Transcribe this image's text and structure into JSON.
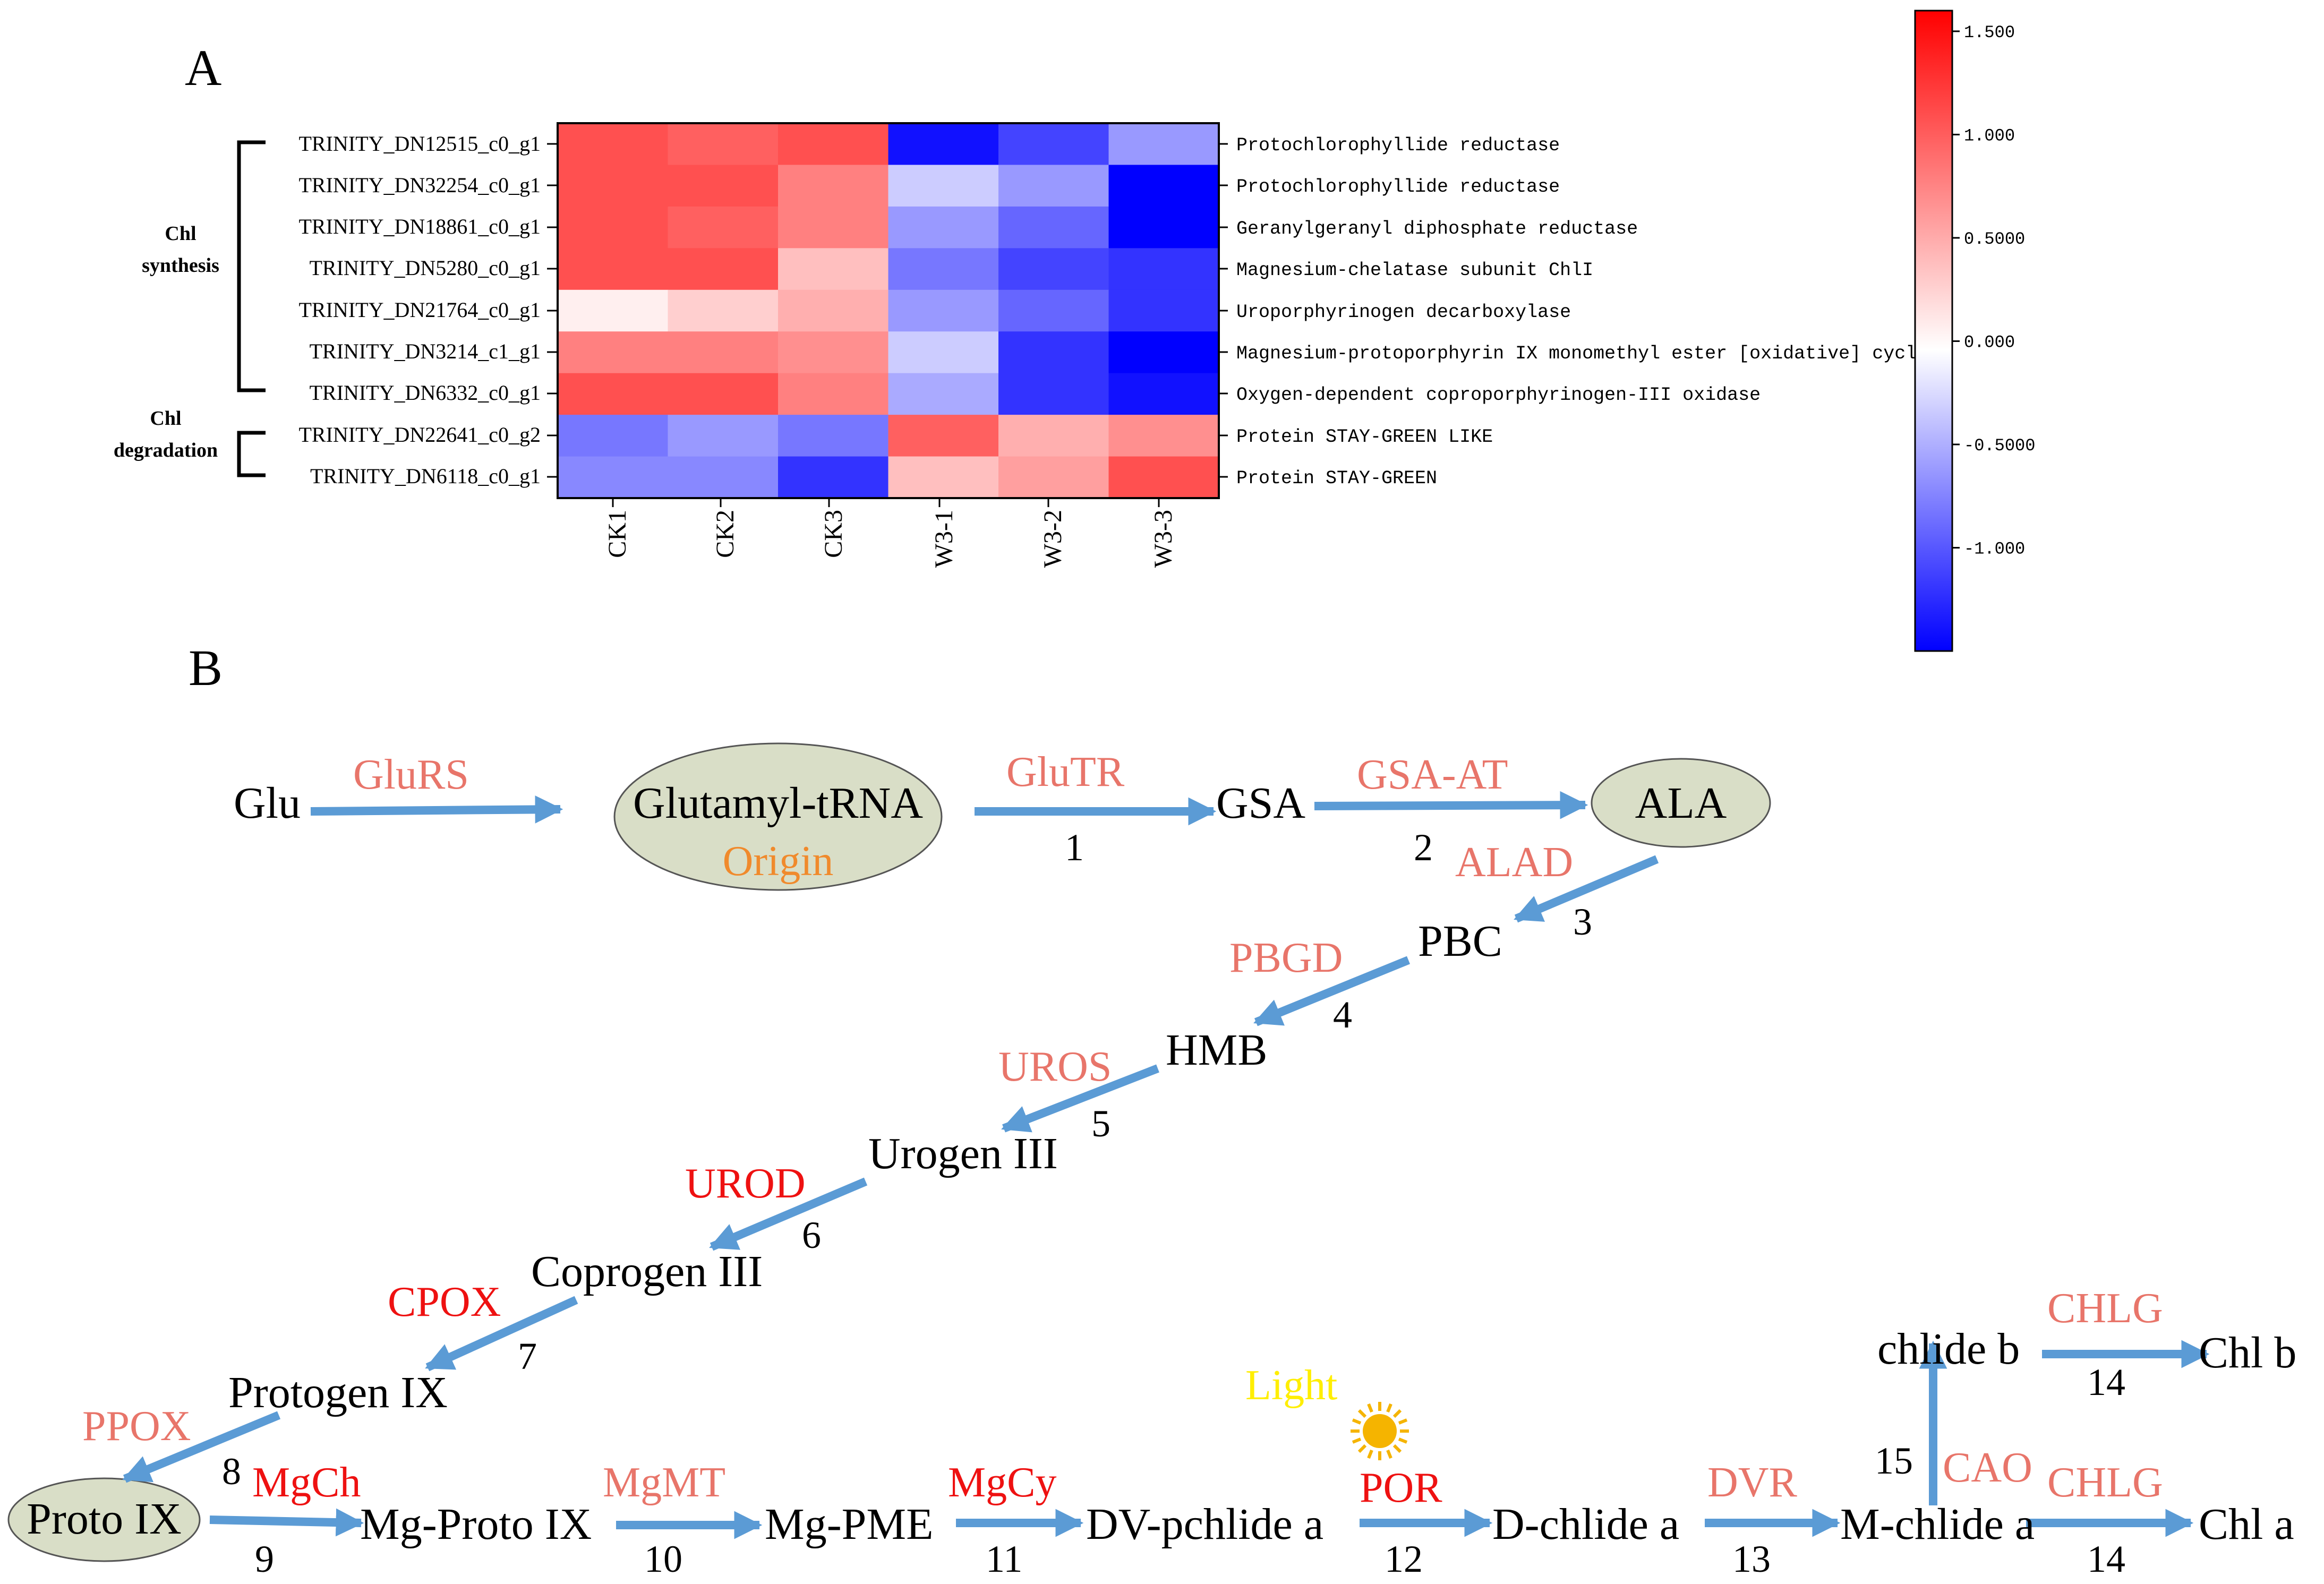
{
  "panel_a": {
    "label": "A",
    "groups": [
      {
        "line1": "Chl",
        "line2": "synthesis"
      },
      {
        "line1": "Chl",
        "line2": "degradation"
      }
    ],
    "genes": [
      "TRINITY_DN12515_c0_g1",
      "TRINITY_DN32254_c0_g1",
      "TRINITY_DN18861_c0_g1",
      "TRINITY_DN5280_c0_g1",
      "TRINITY_DN21764_c0_g1",
      "TRINITY_DN3214_c1_g1",
      "TRINITY_DN6332_c0_g1",
      "TRINITY_DN22641_c0_g2",
      "TRINITY_DN6118_c0_g1"
    ],
    "annotations": [
      "Protochlorophyllide reductase",
      "Protochlorophyllide reductase",
      "Geranylgeranyl diphosphate reductase",
      "Magnesium-chelatase subunit ChlI",
      "Uroporphyrinogen decarboxylase",
      "Magnesium-protoporphyrin IX monomethyl ester [oxidative] cyclase",
      "Oxygen-dependent coproporphyrinogen-III oxidase",
      "Protein STAY-GREEN LIKE",
      "Protein STAY-GREEN"
    ],
    "samples": [
      "CK1",
      "CK2",
      "CK3",
      "W3-1",
      "W3-2",
      "W3-3"
    ],
    "colorbar": {
      "min": -1.5,
      "max": 1.6,
      "ticks": [
        {
          "label": "1.500",
          "value": 1.5
        },
        {
          "label": "1.000",
          "value": 1.0
        },
        {
          "label": "0.5000",
          "value": 0.5
        },
        {
          "label": "0.000",
          "value": 0.0
        },
        {
          "label": "-0.5000",
          "value": -0.5
        },
        {
          "label": "-1.000",
          "value": -1.0
        }
      ],
      "colors": {
        "low": "#0000ff",
        "mid": "#ffffff",
        "high": "#ff0000"
      }
    }
  },
  "chart_data": {
    "type": "heatmap",
    "title": "",
    "rows": [
      "TRINITY_DN12515_c0_g1",
      "TRINITY_DN32254_c0_g1",
      "TRINITY_DN18861_c0_g1",
      "TRINITY_DN5280_c0_g1",
      "TRINITY_DN21764_c0_g1",
      "TRINITY_DN3214_c1_g1",
      "TRINITY_DN6332_c0_g1",
      "TRINITY_DN22641_c0_g2",
      "TRINITY_DN6118_c0_g1"
    ],
    "columns": [
      "CK1",
      "CK2",
      "CK3",
      "W3-1",
      "W3-2",
      "W3-3"
    ],
    "values": [
      [
        1.1,
        1.0,
        1.1,
        -1.4,
        -1.1,
        -0.6
      ],
      [
        1.1,
        1.1,
        0.8,
        -0.3,
        -0.6,
        -1.6
      ],
      [
        1.1,
        1.0,
        0.8,
        -0.6,
        -0.9,
        -1.6
      ],
      [
        1.1,
        1.1,
        0.4,
        -0.8,
        -1.1,
        -1.2
      ],
      [
        0.1,
        0.3,
        0.5,
        -0.6,
        -0.9,
        -1.2
      ],
      [
        0.8,
        0.8,
        0.7,
        -0.3,
        -1.2,
        -1.6
      ],
      [
        1.1,
        1.1,
        0.8,
        -0.5,
        -1.2,
        -1.4
      ],
      [
        -0.8,
        -0.6,
        -0.8,
        1.0,
        0.5,
        0.7
      ],
      [
        -0.7,
        -0.7,
        -1.2,
        0.4,
        0.6,
        1.1
      ]
    ],
    "colorbar_range": [
      -1.5,
      1.6
    ]
  },
  "panel_b": {
    "label": "B",
    "nodes": {
      "glu": "Glu",
      "glutamyl": "Glutamyl-tRNA",
      "origin": "Origin",
      "gsa": "GSA",
      "ala": "ALA",
      "pbc": "PBC",
      "hmb": "HMB",
      "urogen": "Urogen III",
      "coprogen": "Coprogen III",
      "protogen": "Protogen IX",
      "protoix": "Proto IX",
      "mgproto": "Mg-Proto IX",
      "mgpme": "Mg-PME",
      "dvpchlide": "DV-pchlide a",
      "dchlide": "D-chlide a",
      "mchlide": "M-chlide a",
      "chlideb": "chlide b",
      "chlb": "Chl b",
      "chla": "Chl a",
      "light": "Light"
    },
    "enzymes": {
      "glurs": "GluRS",
      "glutr": "GluTR",
      "gsaat": "GSA-AT",
      "alad": "ALAD",
      "pbgd": "PBGD",
      "uros": "UROS",
      "urod": "UROD",
      "cpox": "CPOX",
      "ppox": "PPOX",
      "mgch": "MgCh",
      "mgmt": "MgMT",
      "mgcy": "MgCy",
      "por": "POR",
      "dvr": "DVR",
      "cao": "CAO",
      "chlg1": "CHLG",
      "chlg2": "CHLG"
    },
    "steps": {
      "s1": "1",
      "s2": "2",
      "s3": "3",
      "s4": "4",
      "s5": "5",
      "s6": "6",
      "s7": "7",
      "s8": "8",
      "s9": "9",
      "s10": "10",
      "s11": "11",
      "s12": "12",
      "s13": "13",
      "s14a": "14",
      "s14b": "14",
      "s15": "15"
    },
    "colors": {
      "arrow": "#5b9bd5",
      "ellipse_fill": "#d9dec7",
      "enzyme_salmon": "#e8756a",
      "enzyme_red": "#ee1111",
      "origin": "#f08a2c",
      "light": "#ffee00",
      "sun": "#f5b400"
    }
  }
}
